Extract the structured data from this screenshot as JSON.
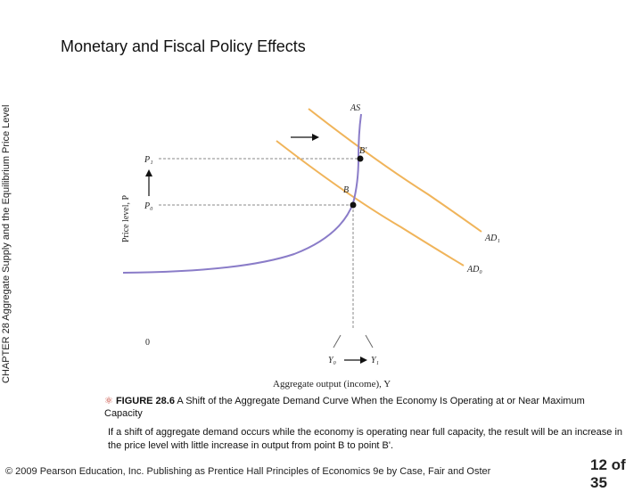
{
  "side": {
    "chapter": "CHAPTER 28",
    "text": "Aggregate Supply and the Equilibrium Price Level"
  },
  "title": "Monetary and Fiscal Policy Effects",
  "diagram": {
    "as_label": "AS",
    "ad0_label": "AD₀",
    "ad1_label": "AD₁",
    "point_b_label": "B",
    "point_b_prime_label": "B'",
    "p1_label": "P₁",
    "p0_label": "P₀",
    "y0_label": "Y₀",
    "y1_label": "Y₁",
    "origin_label": "0",
    "y_axis_label": "Price level, P",
    "x_axis_label": "Aggregate output (income), Y",
    "colors": {
      "as_curve": "#8a7cc8",
      "ad_curves": "#f0b45a",
      "dashed": "#888888"
    }
  },
  "caption": {
    "icon": "figure-icon",
    "figure": "FIGURE 28.6",
    "text": "A Shift of the Aggregate Demand Curve When the Economy Is Operating at or Near Maximum Capacity"
  },
  "description": "If a shift of aggregate demand occurs while the economy is operating near full capacity, the result will be an increase in the price level with little increase in output from point B to point B'.",
  "footer": "© 2009 Pearson Education, Inc. Publishing as Prentice Hall  Principles of Economics 9e by Case, Fair and Oster",
  "page": "12 of 35"
}
